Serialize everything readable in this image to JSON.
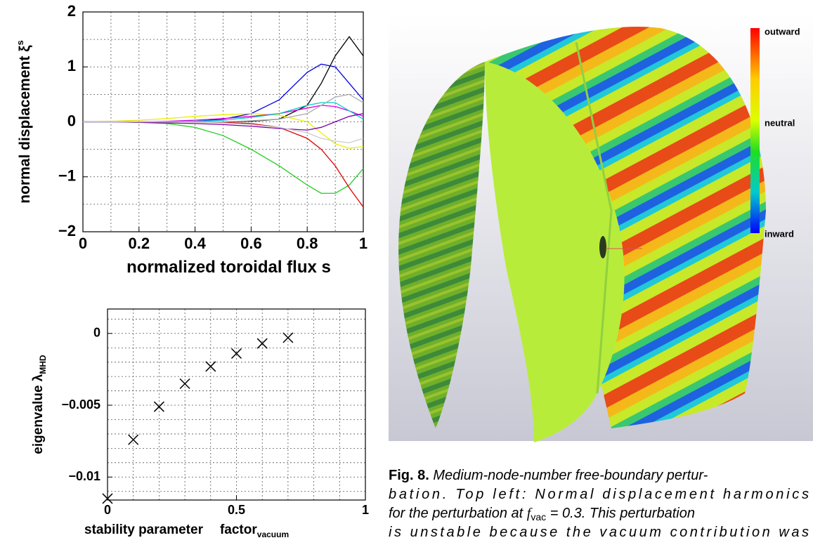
{
  "chart_data": [
    {
      "type": "line",
      "ylabel": "normal displacement ξ",
      "ylabel_sup": "s",
      "xlabel": "normalized toroidal flux s",
      "x": [
        0,
        0.1,
        0.2,
        0.3,
        0.4,
        0.5,
        0.6,
        0.7,
        0.8,
        0.85,
        0.9,
        0.95,
        1
      ],
      "series": [
        {
          "color": "#000000",
          "values": [
            0,
            0,
            0,
            0,
            0,
            0,
            0.01,
            0.05,
            0.3,
            0.7,
            1.2,
            1.55,
            1.2
          ]
        },
        {
          "color": "#0000dd",
          "values": [
            0,
            0,
            0,
            0,
            0.01,
            0.05,
            0.15,
            0.4,
            0.9,
            1.05,
            1.0,
            0.7,
            0.4
          ]
        },
        {
          "color": "#22cc22",
          "values": [
            0,
            0,
            -0.01,
            -0.03,
            -0.1,
            -0.25,
            -0.5,
            -0.8,
            -1.15,
            -1.3,
            -1.3,
            -1.15,
            -0.85
          ]
        },
        {
          "color": "#dd0000",
          "values": [
            0,
            0,
            0,
            0,
            0,
            -0.01,
            -0.03,
            -0.1,
            -0.3,
            -0.5,
            -0.8,
            -1.2,
            -1.55
          ]
        },
        {
          "color": "#eeee00",
          "values": [
            0,
            0.01,
            0.03,
            0.06,
            0.1,
            0.13,
            0.15,
            0.12,
            0,
            -0.2,
            -0.4,
            -0.48,
            -0.45
          ]
        },
        {
          "color": "#dd00dd",
          "values": [
            0,
            0,
            0,
            0.01,
            0.03,
            0.06,
            0.1,
            0.15,
            0.25,
            0.3,
            0.28,
            0.2,
            0.1
          ]
        },
        {
          "color": "#00cccc",
          "values": [
            0,
            0,
            0,
            0,
            0.01,
            0.03,
            0.08,
            0.15,
            0.3,
            0.35,
            0.35,
            0.2,
            0.05
          ]
        },
        {
          "color": "#aaaaaa",
          "values": [
            0,
            0,
            0,
            0,
            0,
            0,
            0.02,
            0.05,
            0.15,
            0.3,
            0.45,
            0.5,
            0.35
          ]
        },
        {
          "color": "#7700aa",
          "values": [
            0,
            0,
            -0.01,
            -0.02,
            -0.03,
            -0.05,
            -0.08,
            -0.12,
            -0.15,
            -0.1,
            0,
            0.1,
            0.15
          ]
        },
        {
          "color": "#cccccc",
          "values": [
            0,
            0,
            0,
            0,
            -0.01,
            -0.02,
            -0.05,
            -0.1,
            -0.2,
            -0.3,
            -0.35,
            -0.38,
            -0.3
          ]
        }
      ],
      "xlim": [
        0,
        1
      ],
      "ylim": [
        -2,
        2
      ],
      "xticks": [
        0,
        0.2,
        0.4,
        0.6,
        0.8,
        1
      ],
      "yticks": [
        {
          "value": -2,
          "label": "−2"
        },
        {
          "value": -1,
          "label": "−1"
        },
        0,
        1,
        2
      ],
      "xgrid": [
        0.1,
        0.2,
        0.3,
        0.4,
        0.5,
        0.6,
        0.7,
        0.8,
        0.9
      ],
      "ygrid": [
        -1.5,
        -1,
        -0.5,
        0,
        0.5,
        1,
        1.5
      ]
    },
    {
      "type": "scatter",
      "ylabel": "eigenvalue λ",
      "ylabel_sub": "MHD",
      "xlabel": "stability parameter",
      "xlabel2": "factor",
      "xlabel2_sub": "vacuum",
      "x": [
        0,
        0.1,
        0.2,
        0.3,
        0.4,
        0.5,
        0.6,
        0.7
      ],
      "values": [
        -0.0115,
        -0.0074,
        -0.0051,
        -0.0035,
        -0.0023,
        -0.0014,
        -0.0007,
        -0.0003
      ],
      "color": "#000000",
      "xlim": [
        0,
        1
      ],
      "ylim": [
        -0.0116,
        0.0017
      ],
      "xticks": [
        0,
        0.5,
        1
      ],
      "yticks": [
        {
          "value": -0.01,
          "label": "−0.01"
        },
        {
          "value": -0.005,
          "label": "−0.005"
        },
        0
      ],
      "xgrid": [
        0.1,
        0.2,
        0.3,
        0.4,
        0.5,
        0.6,
        0.7,
        0.8,
        0.9
      ],
      "ygrid": [
        -0.011,
        -0.01,
        -0.009,
        -0.008,
        -0.007,
        -0.006,
        -0.005,
        -0.004,
        -0.003,
        -0.002,
        -0.001,
        0,
        0.001
      ]
    }
  ],
  "colorbar": {
    "top": "outward",
    "middle": "neutral",
    "bottom": "inward"
  },
  "caption": {
    "label": "Fig. 8.",
    "line1": "Medium-node-number free-boundary pertur-",
    "line2": "bation.  Top left: Normal displacement harmonics",
    "line3_before": "for the perturbation at ",
    "line3_f": "f",
    "line3_sub": "vac",
    "line3_after": " = 0.3. This perturbation",
    "line4": "is unstable because the vacuum contribution was"
  }
}
